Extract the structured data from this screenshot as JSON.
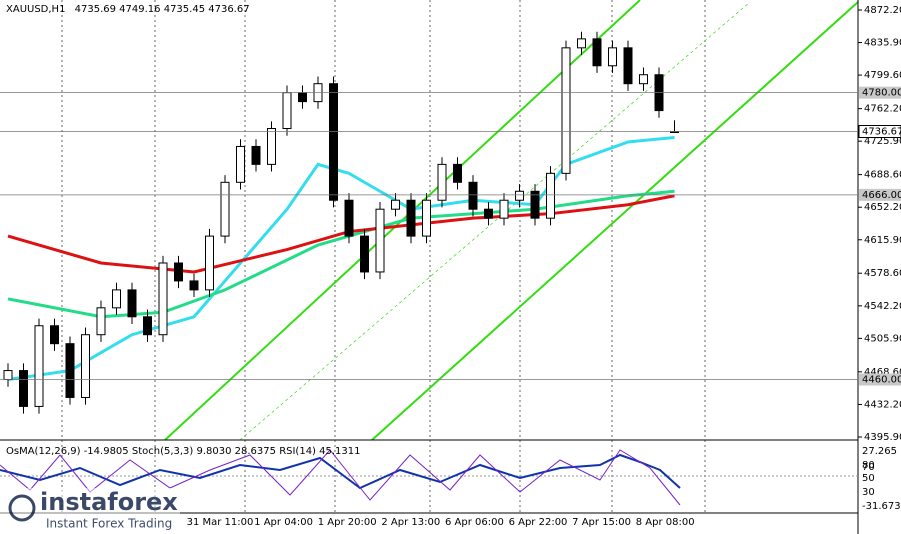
{
  "chart_data": {
    "type": "candlestick",
    "title": "XAUUSD,H1",
    "subtitle": "4735.69 4749.16 4735.45 4736.67",
    "x": [
      0,
      1,
      2,
      3,
      4,
      5,
      6,
      7,
      8,
      9,
      10,
      11,
      12,
      13,
      14,
      15,
      16,
      17,
      18,
      19,
      20,
      21,
      22,
      23,
      24,
      25,
      26,
      27,
      28,
      29,
      30,
      31,
      32,
      33,
      34,
      35,
      36,
      37,
      38,
      39,
      40,
      41,
      42,
      43
    ],
    "open": [
      4460,
      4470,
      4430,
      4520,
      4500,
      4440,
      4510,
      4540,
      4560,
      4530,
      4510,
      4590,
      4570,
      4560,
      4620,
      4680,
      4720,
      4700,
      4740,
      4780,
      4770,
      4790,
      4660,
      4620,
      4580,
      4650,
      4660,
      4620,
      4660,
      4700,
      4680,
      4650,
      4640,
      4660,
      4670,
      4640,
      4690,
      4830,
      4840,
      4810,
      4830,
      4790,
      4800,
      4735.69
    ],
    "high": [
      4478,
      4478,
      4528,
      4528,
      4508,
      4518,
      4548,
      4568,
      4568,
      4538,
      4598,
      4598,
      4578,
      4628,
      4688,
      4728,
      4728,
      4748,
      4788,
      4788,
      4798,
      4798,
      4668,
      4628,
      4658,
      4668,
      4668,
      4668,
      4708,
      4708,
      4688,
      4658,
      4668,
      4678,
      4678,
      4698,
      4838,
      4848,
      4848,
      4838,
      4838,
      4808,
      4808,
      4749.16
    ],
    "low": [
      4452,
      4422,
      4422,
      4492,
      4432,
      4432,
      4502,
      4532,
      4522,
      4502,
      4502,
      4562,
      4552,
      4552,
      4612,
      4672,
      4692,
      4692,
      4732,
      4762,
      4762,
      4652,
      4612,
      4572,
      4572,
      4642,
      4612,
      4612,
      4652,
      4672,
      4642,
      4632,
      4632,
      4652,
      4632,
      4632,
      4682,
      4822,
      4802,
      4802,
      4782,
      4782,
      4752,
      4735.45
    ],
    "close": [
      4470,
      4430,
      4520,
      4500,
      4440,
      4510,
      4540,
      4560,
      4530,
      4510,
      4590,
      4570,
      4560,
      4620,
      4680,
      4720,
      4700,
      4740,
      4780,
      4770,
      4790,
      4660,
      4620,
      4580,
      4650,
      4660,
      4620,
      4660,
      4700,
      4680,
      4650,
      4640,
      4660,
      4670,
      4640,
      4690,
      4830,
      4840,
      4810,
      4830,
      4790,
      4800,
      4760,
      4736.67
    ],
    "lines": [
      {
        "color": "#33ddee",
        "x": [
          0,
          4,
          8,
          12,
          14,
          18,
          20,
          22,
          26,
          30,
          34,
          36,
          40,
          43
        ],
        "values": [
          4460,
          4470,
          4510,
          4530,
          4570,
          4650,
          4700,
          4690,
          4650,
          4660,
          4655,
          4700,
          4725,
          4730
        ]
      },
      {
        "color": "#22dd88",
        "x": [
          0,
          6,
          10,
          14,
          20,
          26,
          34,
          40,
          43
        ],
        "values": [
          4550,
          4530,
          4535,
          4560,
          4610,
          4640,
          4650,
          4665,
          4670
        ]
      },
      {
        "color": "#dd1111",
        "x": [
          0,
          6,
          12,
          18,
          22,
          30,
          35,
          40,
          43
        ],
        "values": [
          4620,
          4590,
          4580,
          4605,
          4625,
          4640,
          4645,
          4655,
          4665
        ]
      }
    ],
    "ylim": [
      4395.9,
      4872.2
    ],
    "yticks": [
      {
        "value": 4872.2,
        "label": "4872.20"
      },
      {
        "value": 4835.9,
        "label": "4835.90"
      },
      {
        "value": 4799.6,
        "label": "4799.60"
      },
      {
        "value": 4762.2,
        "label": "4762.20"
      },
      {
        "value": 4725.9,
        "label": "4725.90"
      },
      {
        "value": 4688.6,
        "label": "4688.60"
      },
      {
        "value": 4652.2,
        "label": "4652.20"
      },
      {
        "value": 4615.9,
        "label": "4615.90"
      },
      {
        "value": 4578.6,
        "label": "4578.60"
      },
      {
        "value": 4542.2,
        "label": "4542.20"
      },
      {
        "value": 4505.9,
        "label": "4505.90"
      },
      {
        "value": 4468.6,
        "label": "4468.60"
      },
      {
        "value": 4432.2,
        "label": "4432.20"
      },
      {
        "value": 4395.9,
        "label": "4395.90"
      }
    ],
    "levels": [
      {
        "value": 4780,
        "label": "4780.00"
      },
      {
        "value": 4736.67,
        "label": "4736.67"
      },
      {
        "value": 4666,
        "label": "4666.00"
      },
      {
        "value": 4460,
        "label": "4460.00"
      }
    ],
    "time_labels": [
      "31 Mar 11:00",
      "1 Apr 04:00",
      "1 Apr 20:00",
      "2 Apr 13:00",
      "6 Apr 06:00",
      "6 Apr 22:00",
      "7 Apr 15:00",
      "8 Apr 08:00"
    ],
    "indicator_title": "OsMA(12,26,9) -14.9805  Stoch(5,3,3) 9.8030 28.6375  RSI(14) 45.1311",
    "indicator_ticks": [
      "27.265",
      "80",
      "70",
      "50",
      "30",
      "-31.6731"
    ],
    "watermark": {
      "brand": "instaforex",
      "tagline": "Instant Forex Trading"
    }
  }
}
